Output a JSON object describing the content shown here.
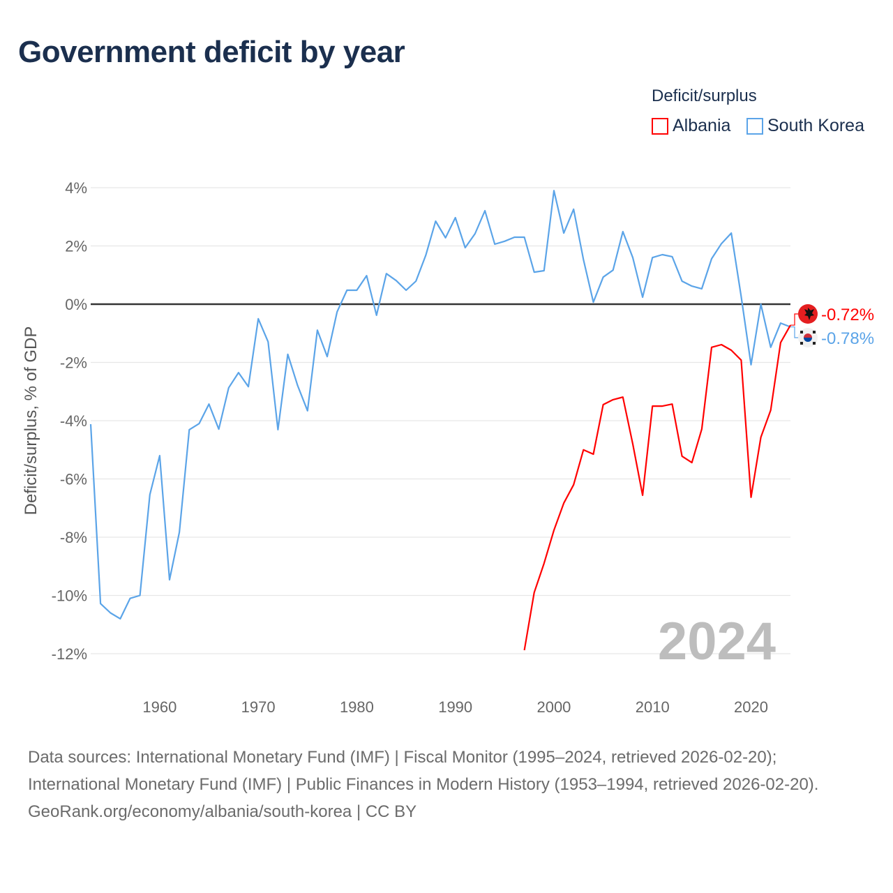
{
  "title": "Government deficit by year",
  "legend": {
    "title": "Deficit/surplus",
    "items": [
      {
        "label": "Albania",
        "color": "#ff0000"
      },
      {
        "label": "South Korea",
        "color": "#5ba4e8"
      }
    ]
  },
  "watermark_year": "2024",
  "footer": {
    "sources": "Data sources: International Monetary Fund (IMF) | Fiscal Monitor (1995–2024, retrieved 2026-02-20); International Monetary Fund (IMF) | Public Finances in Modern History (1953–1994, retrieved 2026-02-20).",
    "credit": "GeoRank.org/economy/albania/south-korea | CC BY"
  },
  "chart_data": {
    "type": "line",
    "title": "Government deficit by year",
    "xlabel": "",
    "ylabel": "Deficit/surplus, % of GDP",
    "xlim": [
      1953,
      2024
    ],
    "ylim": [
      -12,
      4
    ],
    "x_ticks": [
      1960,
      1970,
      1980,
      1990,
      2000,
      2010,
      2020
    ],
    "y_ticks": [
      4,
      2,
      0,
      -2,
      -4,
      -6,
      -8,
      -10,
      -12
    ],
    "y_tick_labels": [
      "4%",
      "2%",
      "0%",
      "-2%",
      "-4%",
      "-6%",
      "-8%",
      "-10%",
      "-12%"
    ],
    "grid": true,
    "legend_position": "top-right",
    "series": [
      {
        "name": "South Korea",
        "color": "#5ba4e8",
        "start_year": 1953,
        "end_label": "-0.78%",
        "values": [
          -4.12,
          -10.28,
          -10.6,
          -10.8,
          -10.1,
          -10.0,
          -6.54,
          -5.2,
          -9.46,
          -7.83,
          -4.31,
          -4.1,
          -3.43,
          -4.29,
          -2.87,
          -2.35,
          -2.83,
          -0.5,
          -1.29,
          -4.31,
          -1.72,
          -2.8,
          -3.66,
          -0.89,
          -1.8,
          -0.26,
          0.48,
          0.48,
          0.98,
          -0.38,
          1.05,
          0.81,
          0.48,
          0.79,
          1.68,
          2.85,
          2.28,
          2.97,
          1.94,
          2.42,
          3.21,
          2.06,
          2.16,
          2.3,
          2.3,
          1.1,
          1.15,
          3.9,
          2.44,
          3.26,
          1.53,
          0.07,
          0.93,
          1.17,
          2.49,
          1.6,
          0.24,
          1.6,
          1.7,
          1.63,
          0.79,
          0.62,
          0.53,
          1.56,
          2.08,
          2.44,
          0.26,
          -2.08,
          0.0,
          -1.48,
          -0.65,
          -0.78
        ]
      },
      {
        "name": "Albania",
        "color": "#ff0000",
        "start_year": 1997,
        "end_label": "-0.72%",
        "values": [
          -11.88,
          -9.9,
          -8.9,
          -7.76,
          -6.83,
          -6.2,
          -5.0,
          -5.15,
          -3.45,
          -3.28,
          -3.19,
          -4.8,
          -6.56,
          -3.5,
          -3.5,
          -3.43,
          -5.22,
          -5.44,
          -4.29,
          -1.48,
          -1.39,
          -1.58,
          -1.92,
          -6.63,
          -4.57,
          -3.64,
          -1.32,
          -0.72
        ]
      }
    ]
  }
}
